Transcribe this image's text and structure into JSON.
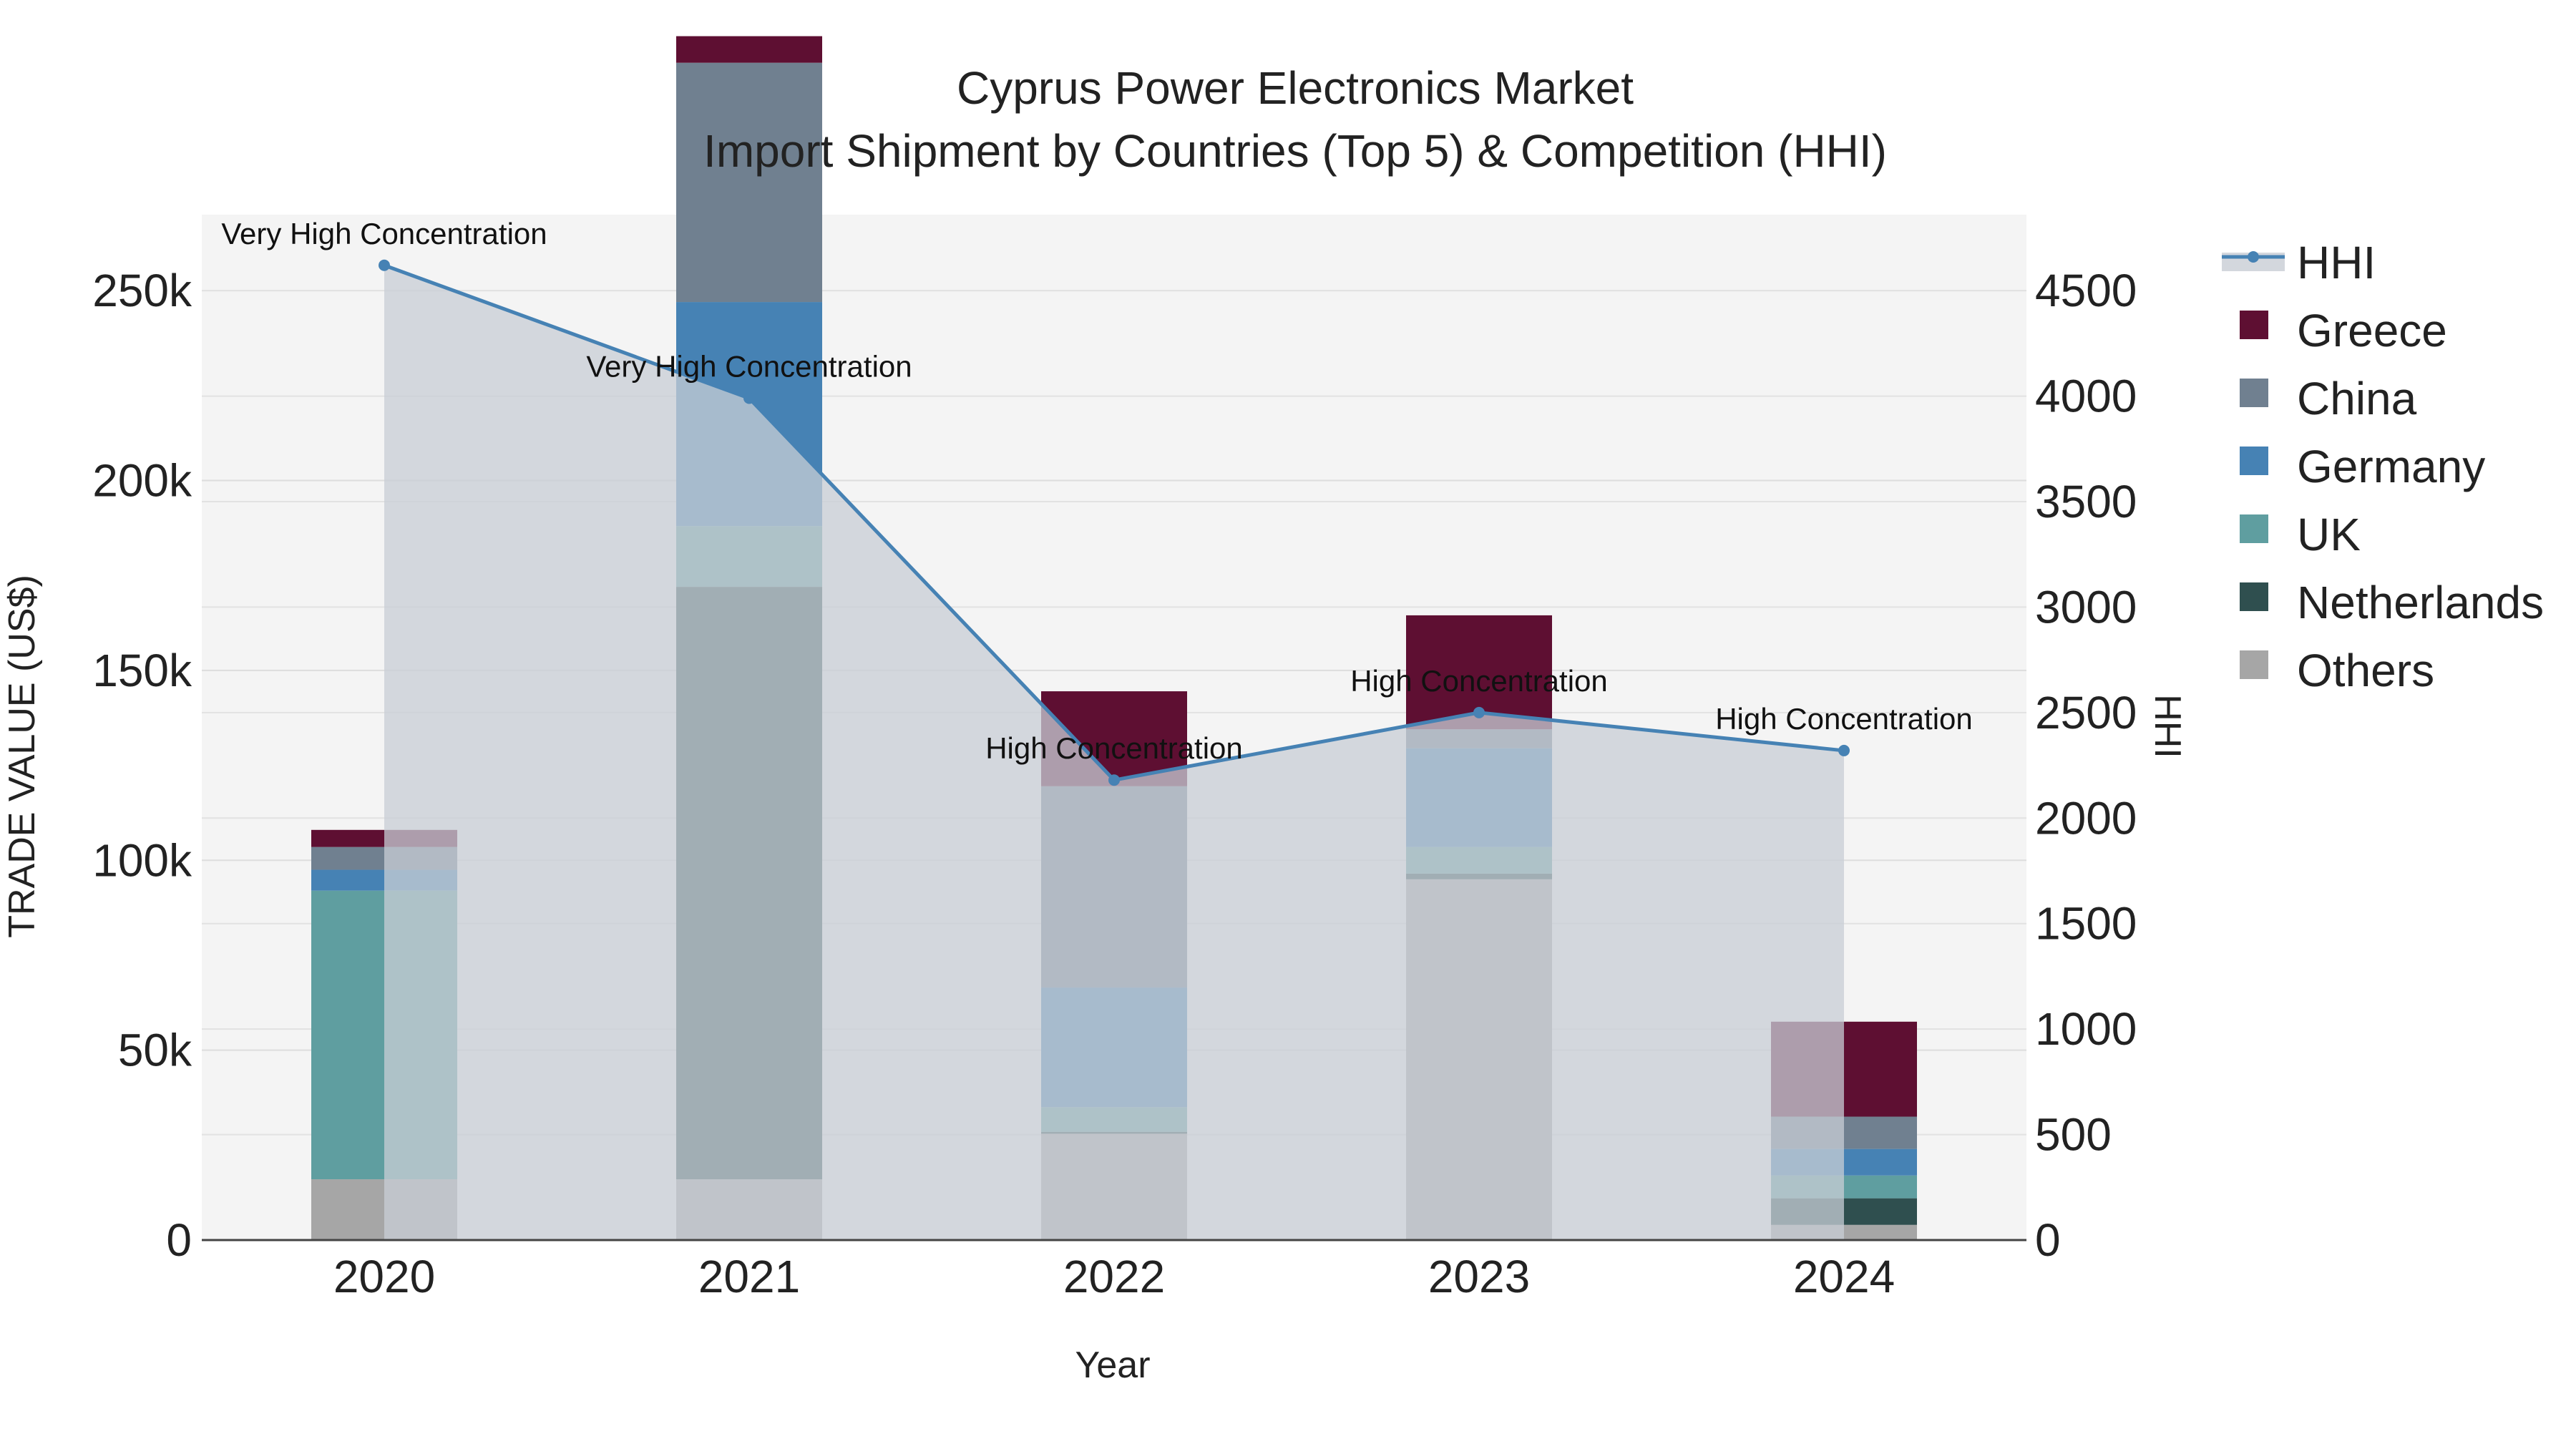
{
  "chart_data": {
    "type": "bar",
    "stacked": true,
    "title": "Cyprus Power Electronics Market",
    "subtitle": "Import Shipment by Countries (Top 5) & Competition (HHI)",
    "xlabel": "Year",
    "ylabel": "TRADE VALUE (US$)",
    "y2label": "HHI",
    "categories": [
      "2020",
      "2021",
      "2022",
      "2023",
      "2024"
    ],
    "ylim": [
      0,
      270000
    ],
    "y2lim": [
      0,
      4860
    ],
    "yticks": [
      0,
      50000,
      100000,
      150000,
      200000,
      250000
    ],
    "ytick_labels": [
      "0",
      "50k",
      "100k",
      "150k",
      "200k",
      "250k"
    ],
    "y2ticks": [
      0,
      500,
      1000,
      1500,
      2000,
      2500,
      3000,
      3500,
      4000,
      4500
    ],
    "y2tick_labels": [
      "0",
      "500",
      "1000",
      "1500",
      "2000",
      "2500",
      "3000",
      "3500",
      "4000",
      "4500"
    ],
    "series": [
      {
        "name": "Others",
        "color": "#a6a6a6",
        "values": [
          16000,
          16000,
          28000,
          95000,
          4000
        ]
      },
      {
        "name": "Netherlands",
        "color": "#2f4f4f",
        "values": [
          0,
          156000,
          500,
          1500,
          7000
        ]
      },
      {
        "name": "UK",
        "color": "#5f9ea0",
        "values": [
          76000,
          16000,
          6500,
          7000,
          6000
        ]
      },
      {
        "name": "Germany",
        "color": "#4682b4",
        "values": [
          5500,
          59000,
          31500,
          26000,
          7000
        ]
      },
      {
        "name": "China",
        "color": "#708090",
        "values": [
          6000,
          63000,
          53000,
          5000,
          8500
        ]
      },
      {
        "name": "Greece",
        "color": "#5e0f32",
        "values": [
          4500,
          7000,
          25000,
          30000,
          25000
        ]
      }
    ],
    "hhi": {
      "name": "HHI",
      "color": "#4682b4",
      "fill_color": "#c8cdd5",
      "values": [
        4620,
        3990,
        2180,
        2500,
        2320
      ],
      "annotations": [
        "Very High Concentration",
        "Very High Concentration",
        "High Concentration",
        "High Concentration",
        "High Concentration"
      ]
    },
    "legend": [
      "HHI",
      "Greece",
      "China",
      "Germany",
      "UK",
      "Netherlands",
      "Others"
    ],
    "legend_position": "right"
  }
}
